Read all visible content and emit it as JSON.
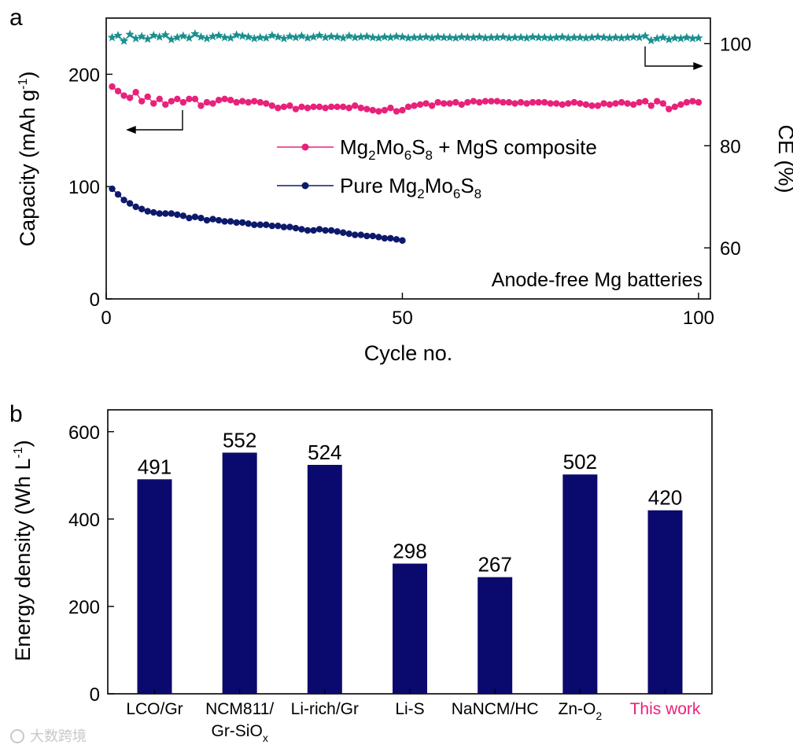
{
  "chart_data": [
    {
      "type": "line",
      "panel": "a",
      "xlabel": "Cycle no.",
      "ylabel": "Capacity (mAh g⁻¹)",
      "ylabel_parts": {
        "base": "Capacity (mAh g",
        "sup": "-1",
        "close": ")"
      },
      "y2label": "CE (%)",
      "xlim": [
        0,
        102
      ],
      "ylim": [
        0,
        250
      ],
      "y2lim": [
        50,
        105
      ],
      "xticks": [
        "0",
        "50",
        "100"
      ],
      "yticks": [
        "0",
        "100",
        "200"
      ],
      "y2ticks": [
        "60",
        "80",
        "100"
      ],
      "annotation": "Anode-free Mg batteries",
      "legend_position": "center-right",
      "series": [
        {
          "name": "Mg₂Mo₆S₈ + MgS composite",
          "legend_parts": [
            {
              "t": "Mg",
              "s": "normal"
            },
            {
              "t": "2",
              "s": "sub"
            },
            {
              "t": "Mo",
              "s": "normal"
            },
            {
              "t": "6",
              "s": "sub"
            },
            {
              "t": "S",
              "s": "normal"
            },
            {
              "t": "8",
              "s": "sub"
            },
            {
              "t": " + MgS composite",
              "s": "normal"
            }
          ],
          "color": "#e8217a",
          "marker": "circle",
          "axis": "left",
          "x": [
            1,
            2,
            3,
            4,
            5,
            6,
            7,
            8,
            9,
            10,
            11,
            12,
            13,
            14,
            15,
            16,
            17,
            18,
            19,
            20,
            21,
            22,
            23,
            24,
            25,
            26,
            27,
            28,
            29,
            30,
            31,
            32,
            33,
            34,
            35,
            36,
            37,
            38,
            39,
            40,
            41,
            42,
            43,
            44,
            45,
            46,
            47,
            48,
            49,
            50,
            51,
            52,
            53,
            54,
            55,
            56,
            57,
            58,
            59,
            60,
            61,
            62,
            63,
            64,
            65,
            66,
            67,
            68,
            69,
            70,
            71,
            72,
            73,
            74,
            75,
            76,
            77,
            78,
            79,
            80,
            81,
            82,
            83,
            84,
            85,
            86,
            87,
            88,
            89,
            90,
            91,
            92,
            93,
            94,
            95,
            96,
            97,
            98,
            99,
            100
          ],
          "values": [
            189,
            185,
            181,
            179,
            184,
            176,
            180,
            174,
            178,
            173,
            176,
            178,
            175,
            178,
            178,
            172,
            175,
            174,
            177,
            178,
            177,
            175,
            176,
            175,
            176,
            175,
            174,
            172,
            170,
            171,
            172,
            169,
            171,
            170,
            171,
            171,
            170,
            171,
            171,
            171,
            170,
            172,
            170,
            169,
            168,
            167,
            168,
            170,
            167,
            168,
            171,
            172,
            173,
            174,
            172,
            175,
            174,
            174,
            175,
            173,
            175,
            176,
            175,
            176,
            176,
            176,
            175,
            175,
            174,
            175,
            174,
            175,
            175,
            175,
            174,
            174,
            173,
            174,
            175,
            174,
            173,
            172,
            172,
            174,
            173,
            174,
            175,
            174,
            173,
            175,
            176,
            172,
            176,
            174,
            169,
            171,
            173,
            175,
            176,
            175
          ]
        },
        {
          "name": "Pure Mg₂Mo₆S₈",
          "legend_parts": [
            {
              "t": "Pure Mg",
              "s": "normal"
            },
            {
              "t": "2",
              "s": "sub"
            },
            {
              "t": "Mo",
              "s": "normal"
            },
            {
              "t": "6",
              "s": "sub"
            },
            {
              "t": "S",
              "s": "normal"
            },
            {
              "t": "8",
              "s": "sub"
            }
          ],
          "color": "#0d1a6b",
          "marker": "circle",
          "axis": "left",
          "x": [
            1,
            2,
            3,
            4,
            5,
            6,
            7,
            8,
            9,
            10,
            11,
            12,
            13,
            14,
            15,
            16,
            17,
            18,
            19,
            20,
            21,
            22,
            23,
            24,
            25,
            26,
            27,
            28,
            29,
            30,
            31,
            32,
            33,
            34,
            35,
            36,
            37,
            38,
            39,
            40,
            41,
            42,
            43,
            44,
            45,
            46,
            47,
            48,
            49,
            50
          ],
          "values": [
            98,
            93,
            88,
            85,
            82,
            80,
            78,
            77,
            76,
            76,
            76,
            75,
            74,
            72,
            73,
            72,
            70,
            71,
            70,
            69,
            69,
            68,
            68,
            67,
            66,
            66,
            66,
            65,
            65,
            64,
            64,
            63,
            62,
            61,
            61,
            62,
            61,
            61,
            60,
            59,
            58,
            57,
            57,
            56,
            56,
            55,
            54,
            54,
            53,
            52
          ]
        },
        {
          "name": "CE",
          "color": "#1b8f8f",
          "marker": "star",
          "axis": "right",
          "x": [
            1,
            2,
            3,
            4,
            5,
            6,
            7,
            8,
            9,
            10,
            11,
            12,
            13,
            14,
            15,
            16,
            17,
            18,
            19,
            20,
            21,
            22,
            23,
            24,
            25,
            26,
            27,
            28,
            29,
            30,
            31,
            32,
            33,
            34,
            35,
            36,
            37,
            38,
            39,
            40,
            41,
            42,
            43,
            44,
            45,
            46,
            47,
            48,
            49,
            50,
            51,
            52,
            53,
            54,
            55,
            56,
            57,
            58,
            59,
            60,
            61,
            62,
            63,
            64,
            65,
            66,
            67,
            68,
            69,
            70,
            71,
            72,
            73,
            74,
            75,
            76,
            77,
            78,
            79,
            80,
            81,
            82,
            83,
            84,
            85,
            86,
            87,
            88,
            89,
            90,
            91,
            92,
            93,
            94,
            95,
            96,
            97,
            98,
            99,
            100
          ],
          "values": [
            101.2,
            101.6,
            100.5,
            101.8,
            101.0,
            101.4,
            100.9,
            101.6,
            101.3,
            101.7,
            100.8,
            101.2,
            101.5,
            101.1,
            101.9,
            101.3,
            101.0,
            101.4,
            101.6,
            101.2,
            101.1,
            101.7,
            101.5,
            101.3,
            101.0,
            101.2,
            101.1,
            101.6,
            101.3,
            101.0,
            101.4,
            101.2,
            101.5,
            101.1,
            101.3,
            101.6,
            101.2,
            101.4,
            101.3,
            101.1,
            101.5,
            101.2,
            101.3,
            101.4,
            101.2,
            101.1,
            101.3,
            101.2,
            101.4,
            101.3,
            101.1,
            101.2,
            101.2,
            101.3,
            101.1,
            101.3,
            101.2,
            101.2,
            101.1,
            101.3,
            101.2,
            101.2,
            101.3,
            101.1,
            101.2,
            101.2,
            101.3,
            101.1,
            101.2,
            101.2,
            101.1,
            101.3,
            101.2,
            101.2,
            101.1,
            101.2,
            101.3,
            101.1,
            101.2,
            101.2,
            101.1,
            101.2,
            101.3,
            101.2,
            101.1,
            101.2,
            101.1,
            101.2,
            101.3,
            101.2,
            101.5,
            100.6,
            101.0,
            101.2,
            100.8,
            101.1,
            101.0,
            101.2,
            101.0,
            101.1
          ]
        }
      ]
    },
    {
      "type": "bar",
      "panel": "b",
      "ylabel": "Energy density (Wh L⁻¹)",
      "ylabel_parts": {
        "base": "Energy density (Wh L",
        "sup": "-1",
        "close": ")"
      },
      "ylim": [
        0,
        650
      ],
      "yticks": [
        "0",
        "200",
        "400",
        "600"
      ],
      "bar_color": "#0a0a6e",
      "highlight_color": "#e8217a",
      "categories": [
        {
          "lines": [
            [
              {
                "t": "LCO/Gr",
                "s": "normal"
              }
            ]
          ],
          "highlight": false
        },
        {
          "lines": [
            [
              {
                "t": "NCM811/",
                "s": "normal"
              }
            ],
            [
              {
                "t": "Gr-SiO",
                "s": "normal"
              },
              {
                "t": "x",
                "s": "sub"
              }
            ]
          ],
          "highlight": false
        },
        {
          "lines": [
            [
              {
                "t": "Li-rich/Gr",
                "s": "normal"
              }
            ]
          ],
          "highlight": false
        },
        {
          "lines": [
            [
              {
                "t": "Li-S",
                "s": "normal"
              }
            ]
          ],
          "highlight": false
        },
        {
          "lines": [
            [
              {
                "t": "NaNCM/HC",
                "s": "normal"
              }
            ]
          ],
          "highlight": false
        },
        {
          "lines": [
            [
              {
                "t": "Zn-O",
                "s": "normal"
              },
              {
                "t": "2",
                "s": "sub"
              }
            ]
          ],
          "highlight": false
        },
        {
          "lines": [
            [
              {
                "t": "This work",
                "s": "normal"
              }
            ]
          ],
          "highlight": true
        }
      ],
      "values": [
        491,
        552,
        524,
        298,
        267,
        502,
        420
      ],
      "value_labels": [
        "491",
        "552",
        "524",
        "298",
        "267",
        "502",
        "420"
      ]
    }
  ],
  "panel_labels": {
    "a": "a",
    "b": "b"
  },
  "watermark": "大数跨境"
}
